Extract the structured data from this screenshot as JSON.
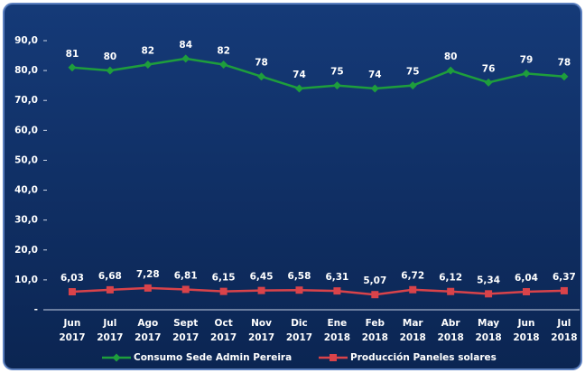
{
  "chart_data": {
    "type": "line",
    "categories": [
      [
        "Jun",
        "2017"
      ],
      [
        "Jul",
        "2017"
      ],
      [
        "Ago",
        "2017"
      ],
      [
        "Sept",
        "2017"
      ],
      [
        "Oct",
        "2017"
      ],
      [
        "Nov",
        "2017"
      ],
      [
        "Dic",
        "2017"
      ],
      [
        "Ene",
        "2018"
      ],
      [
        "Feb",
        "2018"
      ],
      [
        "Mar",
        "2018"
      ],
      [
        "Abr",
        "2018"
      ],
      [
        "May",
        "2018"
      ],
      [
        "Jun",
        "2018"
      ],
      [
        "Jul",
        "2018"
      ]
    ],
    "series": [
      {
        "name": "Consumo Sede Admin Pereira",
        "color": "#1e9e3c",
        "marker": "diamond",
        "values": [
          81,
          80,
          82,
          84,
          82,
          78,
          74,
          75,
          74,
          75,
          80,
          76,
          79,
          78
        ]
      },
      {
        "name": "Producción Paneles solares",
        "color": "#d9434a",
        "marker": "square",
        "values": [
          6.03,
          6.68,
          7.28,
          6.81,
          6.15,
          6.45,
          6.58,
          6.31,
          5.07,
          6.72,
          6.12,
          5.34,
          6.04,
          6.37
        ],
        "value_labels": [
          "6,03",
          "6,68",
          "7,28",
          "6,81",
          "6,15",
          "6,45",
          "6,58",
          "6,31",
          "5,07",
          "6,72",
          "6,12",
          "5,34",
          "6,04",
          "6,37"
        ]
      }
    ],
    "ylim": [
      0,
      90
    ],
    "yticks": [
      {
        "value": 0,
        "label": "-"
      },
      {
        "value": 10,
        "label": "10,0"
      },
      {
        "value": 20,
        "label": "20,0"
      },
      {
        "value": 30,
        "label": "30,0"
      },
      {
        "value": 40,
        "label": "40,0"
      },
      {
        "value": 50,
        "label": "50,0"
      },
      {
        "value": 60,
        "label": "60,0"
      },
      {
        "value": 70,
        "label": "70,0"
      },
      {
        "value": 80,
        "label": "80,0"
      },
      {
        "value": 90,
        "label": "90,0"
      }
    ],
    "grid": false,
    "legend": "bottom"
  }
}
